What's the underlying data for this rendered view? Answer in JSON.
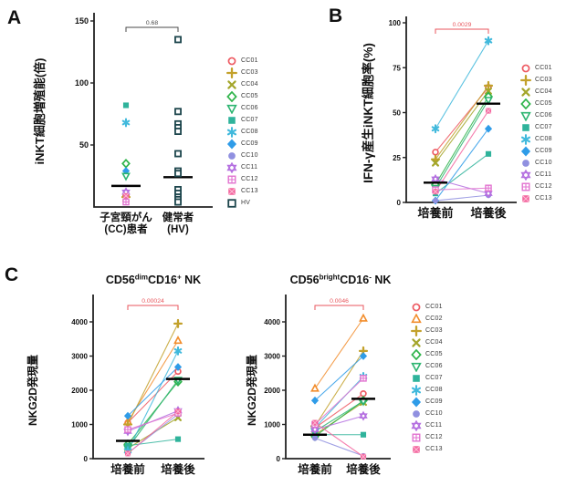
{
  "panel_letters": {
    "a": "A",
    "b": "B",
    "c": "C"
  },
  "accent_colors": {
    "pvalue_red": "#e8565c",
    "axis": "#222222",
    "mean_line": "#000000"
  },
  "marker_defs": {
    "CC01": {
      "shape": "circle-open",
      "color": "#ee5b63"
    },
    "CC02": {
      "shape": "triangle-open",
      "color": "#f28d2c"
    },
    "CC03": {
      "shape": "plus",
      "color": "#c3a12b"
    },
    "CC04": {
      "shape": "x",
      "color": "#a4a62b"
    },
    "CC05": {
      "shape": "diamond-open",
      "color": "#2fb44b"
    },
    "CC06": {
      "shape": "triangle-down-open",
      "color": "#2db571"
    },
    "CC07": {
      "shape": "square-fill",
      "color": "#2fb39b"
    },
    "CC08": {
      "shape": "asterisk",
      "color": "#41b9dc"
    },
    "CC09": {
      "shape": "diamond-fill",
      "color": "#2f9ce8"
    },
    "CC10": {
      "shape": "circle-fill",
      "color": "#9090e0"
    },
    "CC11": {
      "shape": "star-open",
      "color": "#b46fe0"
    },
    "CC12": {
      "shape": "square-grid",
      "color": "#e273d0"
    },
    "CC13": {
      "shape": "square-pattern",
      "color": "#f4679f"
    },
    "HV": {
      "shape": "square-open",
      "color": "#1c454c"
    }
  },
  "chart_data": [
    {
      "id": "A",
      "type": "categorical-scatter",
      "ylabel": "iNKT細胞増殖能(倍)",
      "ylim": [
        0,
        150
      ],
      "yticks": [
        50,
        100,
        150
      ],
      "categories": [
        [
          "子宮頸がん",
          "(CC)患者"
        ],
        [
          "健常者",
          "(HV)"
        ]
      ],
      "pvalue": "0.68",
      "pvalue_color": "#4a4a4a",
      "groups": [
        {
          "name": "CC",
          "mean": 17,
          "points": [
            [
              "CC07",
              82
            ],
            [
              "CC08",
              68
            ],
            [
              "CC05",
              35
            ],
            [
              "CC09",
              29
            ],
            [
              "CC06",
              25
            ],
            [
              "CC03",
              8
            ],
            [
              "CC04",
              7
            ],
            [
              "CC10",
              6
            ],
            [
              "CC01",
              10
            ],
            [
              "CC11",
              12
            ],
            [
              "CC12",
              4
            ],
            [
              "CC13",
              9
            ]
          ]
        },
        {
          "name": "HV",
          "mean": 24,
          "points": [
            [
              "HV",
              135
            ],
            [
              "HV",
              77
            ],
            [
              "HV",
              67
            ],
            [
              "HV",
              64
            ],
            [
              "HV",
              61
            ],
            [
              "HV",
              43
            ],
            [
              "HV",
              29
            ],
            [
              "HV",
              27
            ],
            [
              "HV",
              14
            ],
            [
              "HV",
              11
            ],
            [
              "HV",
              8
            ],
            [
              "HV",
              6
            ],
            [
              "HV",
              4
            ]
          ]
        }
      ],
      "legend": [
        "CC01",
        "CC03",
        "CC04",
        "CC05",
        "CC06",
        "CC07",
        "CC08",
        "CC09",
        "CC10",
        "CC11",
        "CC12",
        "CC13",
        "HV"
      ]
    },
    {
      "id": "B",
      "type": "paired-line",
      "ylabel": "IFN-γ産生iNKT細胞率(%)",
      "ylim": [
        0,
        100
      ],
      "yticks": [
        0,
        25,
        50,
        75,
        100
      ],
      "xticklabels": [
        "培養前",
        "培養後"
      ],
      "pvalue": "0.0029",
      "pvalue_color": "#e8565c",
      "means": [
        11,
        55
      ],
      "series": [
        [
          "CC01",
          28,
          64
        ],
        [
          "CC03",
          24,
          65
        ],
        [
          "CC04",
          22,
          62
        ],
        [
          "CC05",
          10,
          59
        ],
        [
          "CC06",
          8,
          57
        ],
        [
          "CC07",
          5,
          27
        ],
        [
          "CC08",
          41,
          90
        ],
        [
          "CC09",
          1,
          41
        ],
        [
          "CC10",
          1,
          4
        ],
        [
          "CC11",
          13,
          5
        ],
        [
          "CC12",
          7,
          8
        ],
        [
          "CC13",
          6,
          51
        ]
      ],
      "legend": [
        "CC01",
        "CC03",
        "CC04",
        "CC05",
        "CC06",
        "CC07",
        "CC08",
        "CC09",
        "CC10",
        "CC11",
        "CC12",
        "CC13"
      ]
    },
    {
      "id": "C1",
      "type": "paired-line",
      "title": [
        {
          "t": "CD56"
        },
        {
          "t": "dim",
          "sup": true
        },
        {
          "t": "CD16"
        },
        {
          "t": "+",
          "sup": true
        },
        {
          "t": " NK"
        }
      ],
      "ylabel": "NKG2D発現量",
      "ylim": [
        0,
        4400
      ],
      "yticks": [
        0,
        1000,
        2000,
        3000,
        4000
      ],
      "xticklabels": [
        "培養前",
        "培養後"
      ],
      "pvalue": "0.00024",
      "pvalue_color": "#e8565c",
      "means": [
        520,
        2330
      ],
      "series": [
        [
          "CC01",
          1050,
          2550
        ],
        [
          "CC02",
          1080,
          3450
        ],
        [
          "CC03",
          1000,
          3950
        ],
        [
          "CC04",
          300,
          1200
        ],
        [
          "CC05",
          420,
          2250
        ],
        [
          "CC06",
          300,
          2300
        ],
        [
          "CC07",
          380,
          570
        ],
        [
          "CC08",
          230,
          3150
        ],
        [
          "CC09",
          1250,
          2680
        ],
        [
          "CC10",
          160,
          1300
        ],
        [
          "CC11",
          800,
          1400
        ],
        [
          "CC12",
          850,
          1330
        ],
        [
          "CC13",
          150,
          1380
        ]
      ]
    },
    {
      "id": "C2",
      "type": "paired-line",
      "title": [
        {
          "t": "CD56"
        },
        {
          "t": "bright",
          "sup": true
        },
        {
          "t": "CD16"
        },
        {
          "t": "-",
          "sup": true
        },
        {
          "t": " NK"
        }
      ],
      "ylabel": "NKG2D発現量",
      "ylim": [
        0,
        4400
      ],
      "yticks": [
        0,
        1000,
        2000,
        3000,
        4000
      ],
      "xticklabels": [
        "培養前",
        "培養後"
      ],
      "pvalue": "0.0046",
      "pvalue_color": "#e8565c",
      "means": [
        700,
        1750
      ],
      "series": [
        [
          "CC01",
          900,
          1900
        ],
        [
          "CC02",
          2050,
          4100
        ],
        [
          "CC03",
          950,
          3150
        ],
        [
          "CC04",
          700,
          1650
        ],
        [
          "CC05",
          650,
          1700
        ],
        [
          "CC06",
          800,
          1680
        ],
        [
          "CC07",
          700,
          700
        ],
        [
          "CC08",
          900,
          2400
        ],
        [
          "CC09",
          1700,
          3000
        ],
        [
          "CC10",
          600,
          80
        ],
        [
          "CC11",
          850,
          1250
        ],
        [
          "CC12",
          1000,
          2350
        ],
        [
          "CC13",
          1050,
          60
        ]
      ],
      "legend": [
        "CC01",
        "CC02",
        "CC03",
        "CC04",
        "CC05",
        "CC06",
        "CC07",
        "CC08",
        "CC09",
        "CC10",
        "CC11",
        "CC12",
        "CC13"
      ]
    }
  ]
}
